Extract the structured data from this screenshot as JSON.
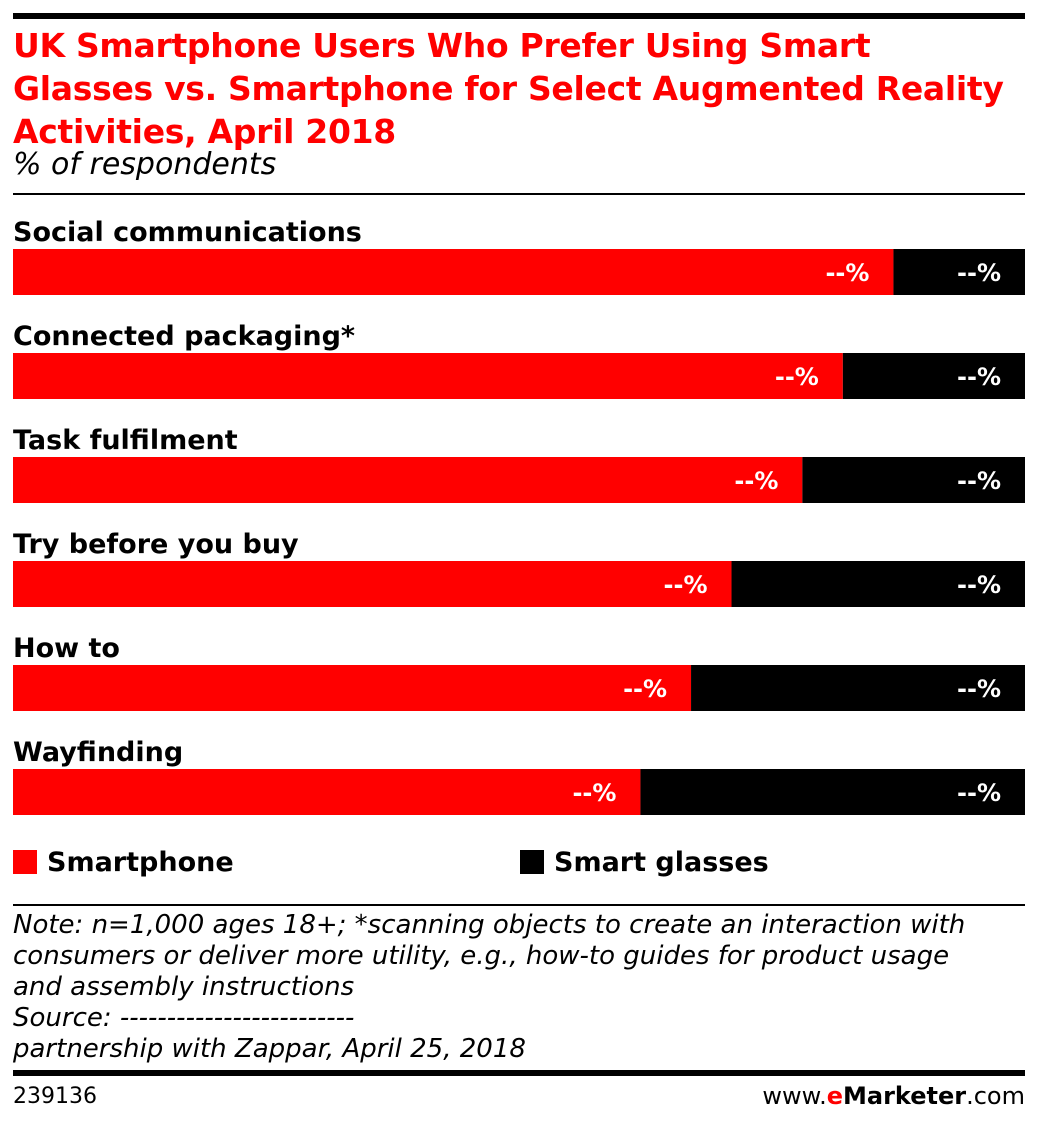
{
  "header": {
    "title_lines": [
      "UK Smartphone Users Who Prefer Using Smart",
      "Glasses vs. Smartphone for Select Augmented Reality",
      "Activities, April 2018"
    ],
    "subtitle": "% of respondents"
  },
  "chart_data": {
    "type": "bar",
    "stacked": true,
    "orientation": "horizontal",
    "title": "UK Smartphone Users Who Prefer Using Smart Glasses vs. Smartphone for Select Augmented Reality Activities, April 2018",
    "subtitle": "% of respondents",
    "categories": [
      "Social communications",
      "Connected packaging*",
      "Task fulfilment",
      "Try before you buy",
      "How to",
      "Wayfinding"
    ],
    "series": [
      {
        "name": "Smartphone",
        "color": "#ff0000",
        "values": [
          87,
          82,
          78,
          71,
          67,
          62
        ],
        "labels": [
          "--%",
          "--%",
          "--%",
          "--%",
          "--%",
          "--%"
        ]
      },
      {
        "name": "Smart glasses",
        "color": "#000000",
        "values": [
          13,
          18,
          22,
          29,
          33,
          38
        ],
        "labels": [
          "--%",
          "--%",
          "--%",
          "--%",
          "--%",
          "--%"
        ]
      }
    ],
    "xlim": [
      0,
      100
    ],
    "grid": false,
    "legend": "bottom"
  },
  "legend": {
    "items": [
      {
        "label": "Smartphone",
        "color": "#ff0000"
      },
      {
        "label": "Smart glasses",
        "color": "#000000"
      }
    ]
  },
  "footer": {
    "note_lines": [
      "Note: n=1,000 ages 18+; *scanning objects to create an interaction with",
      "consumers or deliver more utility, e.g., how-to guides for product usage",
      "and assembly instructions",
      "Source: -------------------------",
      "partnership with Zappar, April 25, 2018"
    ],
    "chart_id": "239136",
    "brand_prefix": "www.",
    "brand_e": "e",
    "brand_name": "Marketer",
    "brand_suffix": ".com"
  }
}
